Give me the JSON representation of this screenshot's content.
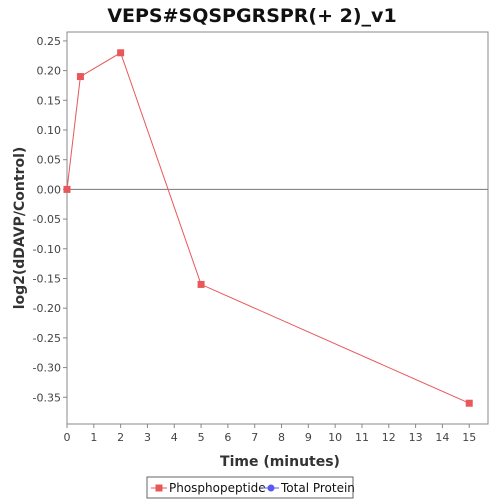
{
  "chart_data": {
    "type": "line",
    "title": "VEPS#SQSPGRSPR(+ 2)_v1",
    "xlabel": "Time (minutes)",
    "ylabel": "log2(dDAVP/Control)",
    "xlim": [
      0,
      15.7
    ],
    "ylim": [
      -0.395,
      0.265
    ],
    "x_ticks": [
      0,
      1,
      2,
      3,
      4,
      5,
      6,
      7,
      8,
      9,
      10,
      11,
      12,
      13,
      14,
      15
    ],
    "y_ticks": [
      0.25,
      0.2,
      0.15,
      0.1,
      0.05,
      0.0,
      -0.05,
      -0.1,
      -0.15,
      -0.2,
      -0.25,
      -0.3,
      -0.35
    ],
    "x_tick_labels": [
      "0",
      "1",
      "2",
      "3",
      "4",
      "5",
      "6",
      "7",
      "8",
      "9",
      "10",
      "11",
      "12",
      "13",
      "14",
      "15"
    ],
    "y_tick_labels": [
      "0.25",
      "0.20",
      "0.15",
      "0.10",
      "0.05",
      "0.00",
      "-0.05",
      "-0.10",
      "-0.15",
      "-0.20",
      "-0.25",
      "-0.30",
      "-0.35"
    ],
    "zero_line": true,
    "grid": false,
    "legend_position": "bottom",
    "series": [
      {
        "name": "Phosphopeptide",
        "color": "#e8575a",
        "marker": "square",
        "x": [
          0,
          0.5,
          2,
          5,
          15
        ],
        "y": [
          0.0,
          0.19,
          0.23,
          -0.16,
          -0.36
        ]
      },
      {
        "name": "Total Protein",
        "color": "#5a5af0",
        "marker": "circle",
        "x": [],
        "y": []
      }
    ]
  }
}
